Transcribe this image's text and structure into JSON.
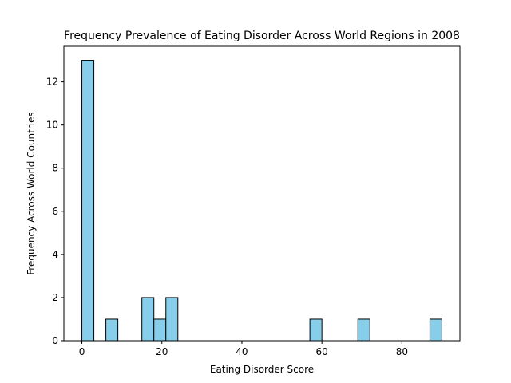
{
  "chart_data": {
    "type": "bar",
    "title": "Frequency Prevalence of Eating Disorder Across World Regions in 2008",
    "xlabel": "Eating Disorder Score",
    "ylabel": "Frequency Across World Countries",
    "xlim": [
      -4.5,
      94.5
    ],
    "ylim": [
      0,
      13.65
    ],
    "xticks": [
      0,
      20,
      40,
      60,
      80
    ],
    "yticks": [
      0,
      2,
      4,
      6,
      8,
      10,
      12
    ],
    "bar_color": "#87ceeb",
    "edge_color": "#000000",
    "bins": [
      {
        "x0": 0,
        "x1": 3,
        "count": 13
      },
      {
        "x0": 6,
        "x1": 9,
        "count": 1
      },
      {
        "x0": 15,
        "x1": 18,
        "count": 2
      },
      {
        "x0": 18,
        "x1": 21,
        "count": 1
      },
      {
        "x0": 21,
        "x1": 24,
        "count": 2
      },
      {
        "x0": 57,
        "x1": 60,
        "count": 1
      },
      {
        "x0": 69,
        "x1": 72,
        "count": 1
      },
      {
        "x0": 87,
        "x1": 90,
        "count": 1
      }
    ],
    "grid": false
  }
}
